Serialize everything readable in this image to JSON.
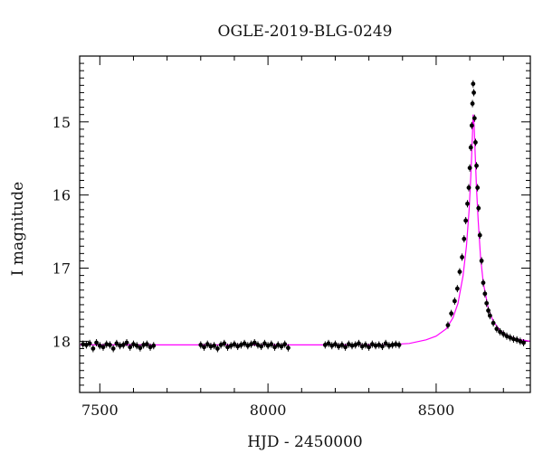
{
  "chart_data": {
    "type": "scatter",
    "title": "OGLE-2019-BLG-0249",
    "xlabel": "HJD - 2450000",
    "ylabel": "I magnitude",
    "xlim": [
      7440,
      8780
    ],
    "ylim": [
      18.7,
      14.1
    ],
    "y_inverted": true,
    "x_ticks": [
      7500,
      8000,
      8500
    ],
    "y_ticks": [
      15,
      16,
      17,
      18
    ],
    "grid": false,
    "colors": {
      "points": "#000000",
      "model": "#ff00ff"
    },
    "series": [
      {
        "type": "scatter_errorbars",
        "x": [
          7450,
          7460,
          7470,
          7480,
          7490,
          7500,
          7510,
          7520,
          7530,
          7540,
          7550,
          7560,
          7570,
          7580,
          7590,
          7600,
          7610,
          7620,
          7630,
          7640,
          7650,
          7660,
          7800,
          7810,
          7820,
          7830,
          7840,
          7850,
          7860,
          7870,
          7880,
          7890,
          7900,
          7910,
          7920,
          7930,
          7940,
          7950,
          7960,
          7970,
          7980,
          7990,
          8000,
          8010,
          8020,
          8030,
          8040,
          8050,
          8060,
          8170,
          8180,
          8190,
          8200,
          8210,
          8220,
          8230,
          8240,
          8250,
          8260,
          8270,
          8280,
          8290,
          8300,
          8310,
          8320,
          8330,
          8340,
          8350,
          8360,
          8370,
          8380,
          8390,
          8535,
          8545,
          8555,
          8563,
          8570,
          8577,
          8583,
          8588,
          8593,
          8597,
          8600,
          8603,
          8606,
          8608,
          8610,
          8612,
          8614,
          8617,
          8620,
          8623,
          8626,
          8630,
          8635,
          8640,
          8645,
          8650,
          8655,
          8660,
          8670,
          8680,
          8690,
          8700,
          8710,
          8720,
          8730,
          8740,
          8750,
          8760
        ],
        "y": [
          18.04,
          18.05,
          18.03,
          18.1,
          18.02,
          18.06,
          18.08,
          18.04,
          18.05,
          18.1,
          18.03,
          18.06,
          18.05,
          18.02,
          18.08,
          18.04,
          18.06,
          18.09,
          18.05,
          18.04,
          18.08,
          18.06,
          18.05,
          18.08,
          18.04,
          18.07,
          18.06,
          18.1,
          18.05,
          18.03,
          18.08,
          18.06,
          18.04,
          18.07,
          18.05,
          18.03,
          18.06,
          18.04,
          18.02,
          18.05,
          18.07,
          18.03,
          18.06,
          18.04,
          18.08,
          18.05,
          18.07,
          18.04,
          18.09,
          18.05,
          18.03,
          18.06,
          18.04,
          18.07,
          18.05,
          18.08,
          18.04,
          18.06,
          18.05,
          18.03,
          18.07,
          18.05,
          18.08,
          18.04,
          18.06,
          18.05,
          18.07,
          18.03,
          18.06,
          18.05,
          18.04,
          18.05,
          17.78,
          17.62,
          17.45,
          17.28,
          17.05,
          16.85,
          16.6,
          16.35,
          16.12,
          15.9,
          15.63,
          15.35,
          15.05,
          14.75,
          14.48,
          14.6,
          14.95,
          15.28,
          15.6,
          15.9,
          16.18,
          16.55,
          16.9,
          17.2,
          17.35,
          17.48,
          17.58,
          17.65,
          17.75,
          17.83,
          17.87,
          17.9,
          17.93,
          17.95,
          17.97,
          17.98,
          18.0,
          18.02
        ]
      },
      {
        "type": "line_model",
        "x": [
          7440,
          7800,
          8100,
          8350,
          8420,
          8470,
          8500,
          8530,
          8550,
          8565,
          8580,
          8590,
          8598,
          8603,
          8607,
          8610,
          8613,
          8616,
          8620,
          8625,
          8632,
          8640,
          8655,
          8670,
          8690,
          8710,
          8740,
          8780
        ],
        "y": [
          18.05,
          18.05,
          18.05,
          18.05,
          18.03,
          17.98,
          17.93,
          17.83,
          17.68,
          17.48,
          17.1,
          16.7,
          16.2,
          15.75,
          15.3,
          14.9,
          15.05,
          15.45,
          15.9,
          16.35,
          16.85,
          17.2,
          17.55,
          17.73,
          17.85,
          17.92,
          17.97,
          18.0
        ]
      }
    ]
  }
}
